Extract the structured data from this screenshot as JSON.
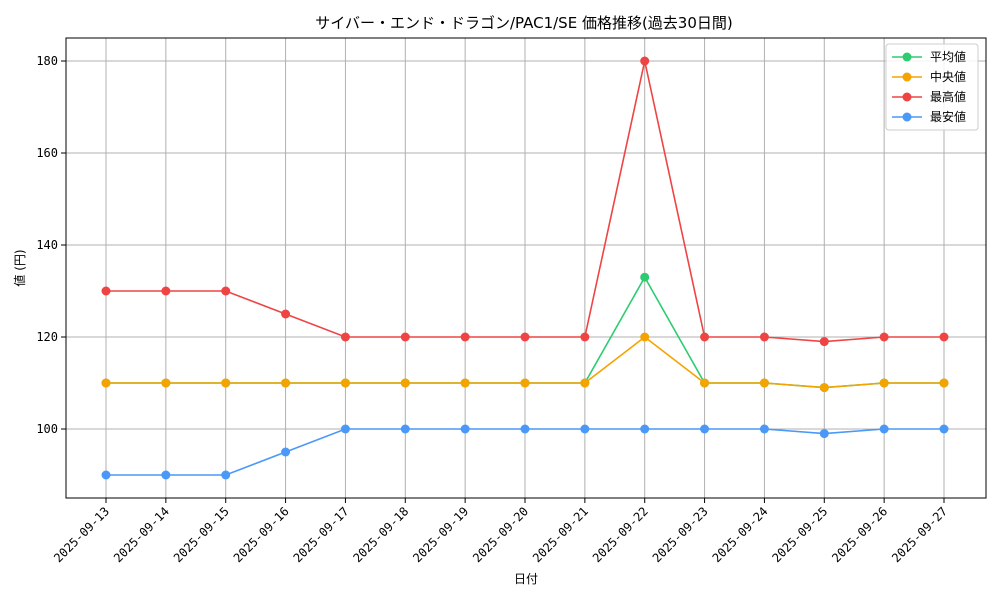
{
  "chart_data": {
    "type": "line",
    "title": "サイバー・エンド・ドラゴン/PAC1/SE 価格推移(過去30日間)",
    "xlabel": "日付",
    "ylabel": "値 (円)",
    "categories": [
      "2025-09-13",
      "2025-09-14",
      "2025-09-15",
      "2025-09-16",
      "2025-09-17",
      "2025-09-18",
      "2025-09-19",
      "2025-09-20",
      "2025-09-21",
      "2025-09-22",
      "2025-09-23",
      "2025-09-24",
      "2025-09-25",
      "2025-09-26",
      "2025-09-27"
    ],
    "ylim": [
      85,
      185
    ],
    "yticks": [
      100,
      120,
      140,
      160,
      180
    ],
    "grid": true,
    "legend_position": "top-right",
    "series": [
      {
        "name": "平均値",
        "color": "#2ecc71",
        "values": [
          110,
          110,
          110,
          110,
          110,
          110,
          110,
          110,
          110,
          133,
          110,
          110,
          109,
          110,
          110
        ]
      },
      {
        "name": "中央値",
        "color": "#f5a300",
        "values": [
          110,
          110,
          110,
          110,
          110,
          110,
          110,
          110,
          110,
          120,
          110,
          110,
          109,
          110,
          110
        ]
      },
      {
        "name": "最高値",
        "color": "#ef4444",
        "values": [
          130,
          130,
          130,
          125,
          120,
          120,
          120,
          120,
          120,
          180,
          120,
          120,
          119,
          120,
          120
        ]
      },
      {
        "name": "最安値",
        "color": "#4a98f7",
        "values": [
          90,
          90,
          90,
          95,
          100,
          100,
          100,
          100,
          100,
          100,
          100,
          100,
          99,
          100,
          100
        ]
      }
    ]
  }
}
